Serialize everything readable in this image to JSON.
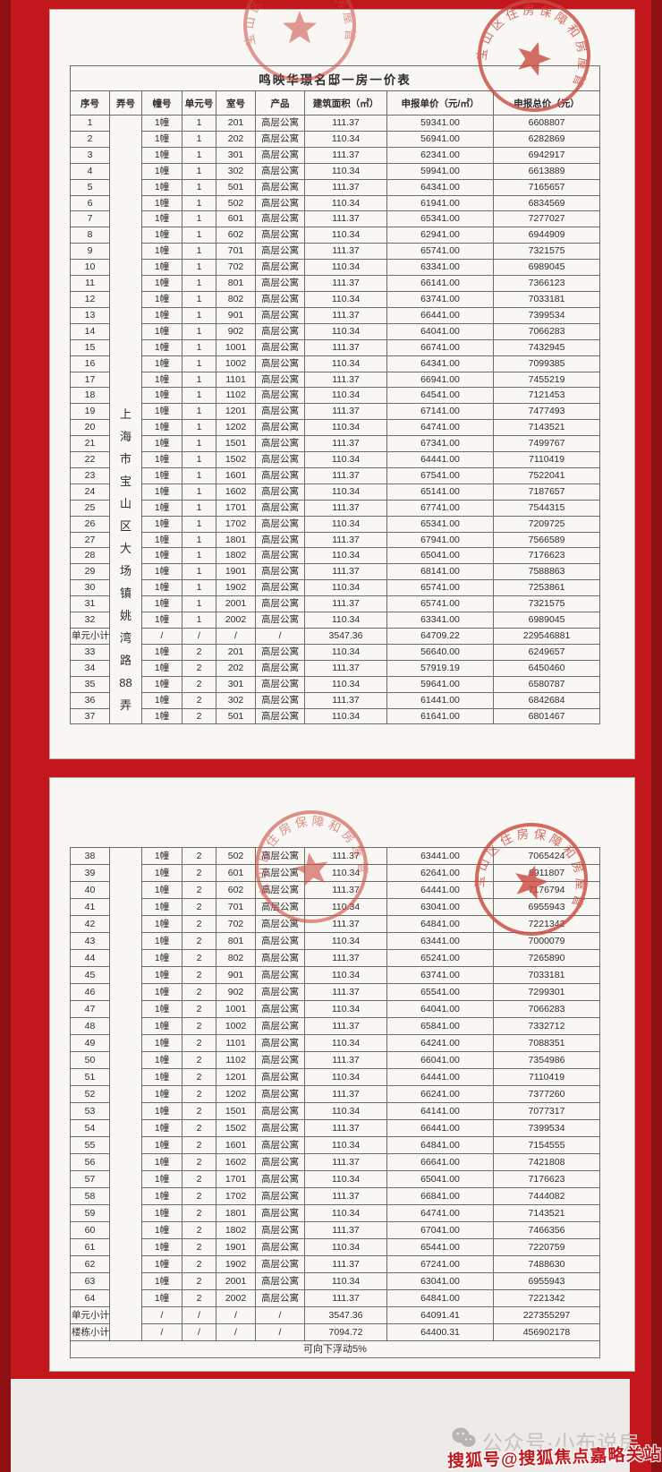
{
  "page_title": "鸣映华璟名邸一房一价表",
  "columns": [
    "序号",
    "弄号",
    "幢号",
    "单元号",
    "室号",
    "产品",
    "建筑面积（㎡）",
    "申报单价（元/㎡）",
    "申报总价（元）"
  ],
  "lane_address": "上海市宝山区大场镇姚湾路88弄",
  "lane_address_chars": [
    "上",
    "海",
    "市",
    "宝",
    "山",
    "区",
    "大",
    "场",
    "镇",
    "姚",
    "湾",
    "路",
    "88",
    "弄"
  ],
  "page1": {
    "rows": [
      [
        "1",
        "1幢",
        "1",
        "201",
        "高层公寓",
        "111.37",
        "59341.00",
        "6608807"
      ],
      [
        "2",
        "1幢",
        "1",
        "202",
        "高层公寓",
        "110.34",
        "56941.00",
        "6282869"
      ],
      [
        "3",
        "1幢",
        "1",
        "301",
        "高层公寓",
        "111.37",
        "62341.00",
        "6942917"
      ],
      [
        "4",
        "1幢",
        "1",
        "302",
        "高层公寓",
        "110.34",
        "59941.00",
        "6613889"
      ],
      [
        "5",
        "1幢",
        "1",
        "501",
        "高层公寓",
        "111.37",
        "64341.00",
        "7165657"
      ],
      [
        "6",
        "1幢",
        "1",
        "502",
        "高层公寓",
        "110.34",
        "61941.00",
        "6834569"
      ],
      [
        "7",
        "1幢",
        "1",
        "601",
        "高层公寓",
        "111.37",
        "65341.00",
        "7277027"
      ],
      [
        "8",
        "1幢",
        "1",
        "602",
        "高层公寓",
        "110.34",
        "62941.00",
        "6944909"
      ],
      [
        "9",
        "1幢",
        "1",
        "701",
        "高层公寓",
        "111.37",
        "65741.00",
        "7321575"
      ],
      [
        "10",
        "1幢",
        "1",
        "702",
        "高层公寓",
        "110.34",
        "63341.00",
        "6989045"
      ],
      [
        "11",
        "1幢",
        "1",
        "801",
        "高层公寓",
        "111.37",
        "66141.00",
        "7366123"
      ],
      [
        "12",
        "1幢",
        "1",
        "802",
        "高层公寓",
        "110.34",
        "63741.00",
        "7033181"
      ],
      [
        "13",
        "1幢",
        "1",
        "901",
        "高层公寓",
        "111.37",
        "66441.00",
        "7399534"
      ],
      [
        "14",
        "1幢",
        "1",
        "902",
        "高层公寓",
        "110.34",
        "64041.00",
        "7066283"
      ],
      [
        "15",
        "1幢",
        "1",
        "1001",
        "高层公寓",
        "111.37",
        "66741.00",
        "7432945"
      ],
      [
        "16",
        "1幢",
        "1",
        "1002",
        "高层公寓",
        "110.34",
        "64341.00",
        "7099385"
      ],
      [
        "17",
        "1幢",
        "1",
        "1101",
        "高层公寓",
        "111.37",
        "66941.00",
        "7455219"
      ],
      [
        "18",
        "1幢",
        "1",
        "1102",
        "高层公寓",
        "110.34",
        "64541.00",
        "7121453"
      ],
      [
        "19",
        "1幢",
        "1",
        "1201",
        "高层公寓",
        "111.37",
        "67141.00",
        "7477493"
      ],
      [
        "20",
        "1幢",
        "1",
        "1202",
        "高层公寓",
        "110.34",
        "64741.00",
        "7143521"
      ],
      [
        "21",
        "1幢",
        "1",
        "1501",
        "高层公寓",
        "111.37",
        "67341.00",
        "7499767"
      ],
      [
        "22",
        "1幢",
        "1",
        "1502",
        "高层公寓",
        "110.34",
        "64441.00",
        "7110419"
      ],
      [
        "23",
        "1幢",
        "1",
        "1601",
        "高层公寓",
        "111.37",
        "67541.00",
        "7522041"
      ],
      [
        "24",
        "1幢",
        "1",
        "1602",
        "高层公寓",
        "110.34",
        "65141.00",
        "7187657"
      ],
      [
        "25",
        "1幢",
        "1",
        "1701",
        "高层公寓",
        "111.37",
        "67741.00",
        "7544315"
      ],
      [
        "26",
        "1幢",
        "1",
        "1702",
        "高层公寓",
        "110.34",
        "65341.00",
        "7209725"
      ],
      [
        "27",
        "1幢",
        "1",
        "1801",
        "高层公寓",
        "111.37",
        "67941.00",
        "7566589"
      ],
      [
        "28",
        "1幢",
        "1",
        "1802",
        "高层公寓",
        "110.34",
        "65041.00",
        "7176623"
      ],
      [
        "29",
        "1幢",
        "1",
        "1901",
        "高层公寓",
        "111.37",
        "68141.00",
        "7588863"
      ],
      [
        "30",
        "1幢",
        "1",
        "1902",
        "高层公寓",
        "110.34",
        "65741.00",
        "7253861"
      ],
      [
        "31",
        "1幢",
        "1",
        "2001",
        "高层公寓",
        "111.37",
        "65741.00",
        "7321575"
      ],
      [
        "32",
        "1幢",
        "1",
        "2002",
        "高层公寓",
        "110.34",
        "63341.00",
        "6989045"
      ],
      [
        "单元小计",
        "/",
        "/",
        "/",
        "/",
        "3547.36",
        "64709.22",
        "229546881"
      ],
      [
        "33",
        "1幢",
        "2",
        "201",
        "高层公寓",
        "110.34",
        "56640.00",
        "6249657"
      ],
      [
        "34",
        "1幢",
        "2",
        "202",
        "高层公寓",
        "111.37",
        "57919.19",
        "6450460"
      ],
      [
        "35",
        "1幢",
        "2",
        "301",
        "高层公寓",
        "110.34",
        "59641.00",
        "6580787"
      ],
      [
        "36",
        "1幢",
        "2",
        "302",
        "高层公寓",
        "111.37",
        "61441.00",
        "6842684"
      ],
      [
        "37",
        "1幢",
        "2",
        "501",
        "高层公寓",
        "110.34",
        "61641.00",
        "6801467"
      ]
    ]
  },
  "page2": {
    "rows": [
      [
        "38",
        "1幢",
        "2",
        "502",
        "高层公寓",
        "111.37",
        "63441.00",
        "7065424"
      ],
      [
        "39",
        "1幢",
        "2",
        "601",
        "高层公寓",
        "110.34",
        "62641.00",
        "6911807"
      ],
      [
        "40",
        "1幢",
        "2",
        "602",
        "高层公寓",
        "111.37",
        "64441.00",
        "7176794"
      ],
      [
        "41",
        "1幢",
        "2",
        "701",
        "高层公寓",
        "110.34",
        "63041.00",
        "6955943"
      ],
      [
        "42",
        "1幢",
        "2",
        "702",
        "高层公寓",
        "111.37",
        "64841.00",
        "7221342"
      ],
      [
        "43",
        "1幢",
        "2",
        "801",
        "高层公寓",
        "110.34",
        "63441.00",
        "7000079"
      ],
      [
        "44",
        "1幢",
        "2",
        "802",
        "高层公寓",
        "111.37",
        "65241.00",
        "7265890"
      ],
      [
        "45",
        "1幢",
        "2",
        "901",
        "高层公寓",
        "110.34",
        "63741.00",
        "7033181"
      ],
      [
        "46",
        "1幢",
        "2",
        "902",
        "高层公寓",
        "111.37",
        "65541.00",
        "7299301"
      ],
      [
        "47",
        "1幢",
        "2",
        "1001",
        "高层公寓",
        "110.34",
        "64041.00",
        "7066283"
      ],
      [
        "48",
        "1幢",
        "2",
        "1002",
        "高层公寓",
        "111.37",
        "65841.00",
        "7332712"
      ],
      [
        "49",
        "1幢",
        "2",
        "1101",
        "高层公寓",
        "110.34",
        "64241.00",
        "7088351"
      ],
      [
        "50",
        "1幢",
        "2",
        "1102",
        "高层公寓",
        "111.37",
        "66041.00",
        "7354986"
      ],
      [
        "51",
        "1幢",
        "2",
        "1201",
        "高层公寓",
        "110.34",
        "64441.00",
        "7110419"
      ],
      [
        "52",
        "1幢",
        "2",
        "1202",
        "高层公寓",
        "111.37",
        "66241.00",
        "7377260"
      ],
      [
        "53",
        "1幢",
        "2",
        "1501",
        "高层公寓",
        "110.34",
        "64141.00",
        "7077317"
      ],
      [
        "54",
        "1幢",
        "2",
        "1502",
        "高层公寓",
        "111.37",
        "66441.00",
        "7399534"
      ],
      [
        "55",
        "1幢",
        "2",
        "1601",
        "高层公寓",
        "110.34",
        "64841.00",
        "7154555"
      ],
      [
        "56",
        "1幢",
        "2",
        "1602",
        "高层公寓",
        "111.37",
        "66641.00",
        "7421808"
      ],
      [
        "57",
        "1幢",
        "2",
        "1701",
        "高层公寓",
        "110.34",
        "65041.00",
        "7176623"
      ],
      [
        "58",
        "1幢",
        "2",
        "1702",
        "高层公寓",
        "111.37",
        "66841.00",
        "7444082"
      ],
      [
        "59",
        "1幢",
        "2",
        "1801",
        "高层公寓",
        "110.34",
        "64741.00",
        "7143521"
      ],
      [
        "60",
        "1幢",
        "2",
        "1802",
        "高层公寓",
        "111.37",
        "67041.00",
        "7466356"
      ],
      [
        "61",
        "1幢",
        "2",
        "1901",
        "高层公寓",
        "110.34",
        "65441.00",
        "7220759"
      ],
      [
        "62",
        "1幢",
        "2",
        "1902",
        "高层公寓",
        "111.37",
        "67241.00",
        "7488630"
      ],
      [
        "63",
        "1幢",
        "2",
        "2001",
        "高层公寓",
        "110.34",
        "63041.00",
        "6955943"
      ],
      [
        "64",
        "1幢",
        "2",
        "2002",
        "高层公寓",
        "111.37",
        "64841.00",
        "7221342"
      ],
      [
        "单元小计",
        "/",
        "/",
        "/",
        "/",
        "3547.36",
        "64091.41",
        "227355297"
      ],
      [
        "楼栋小计",
        "/",
        "/",
        "/",
        "/",
        "7094.72",
        "64400.31",
        "456902178"
      ]
    ],
    "note": "可向下浮动5%"
  },
  "stamp": {
    "text": "宝山区住房保障和房屋管理局"
  },
  "watermarks": {
    "wechat_account": "公众号·小布说房",
    "sohu_account": "搜狐号@搜狐焦点嘉略关站"
  },
  "colors": {
    "frame_red": "#c2171d",
    "frame_dark_red": "#8f1013",
    "panel_bg": "#f8f7f4",
    "stamp_red": "#cb4a3f",
    "watermark_gray": "#c6c3bf"
  }
}
